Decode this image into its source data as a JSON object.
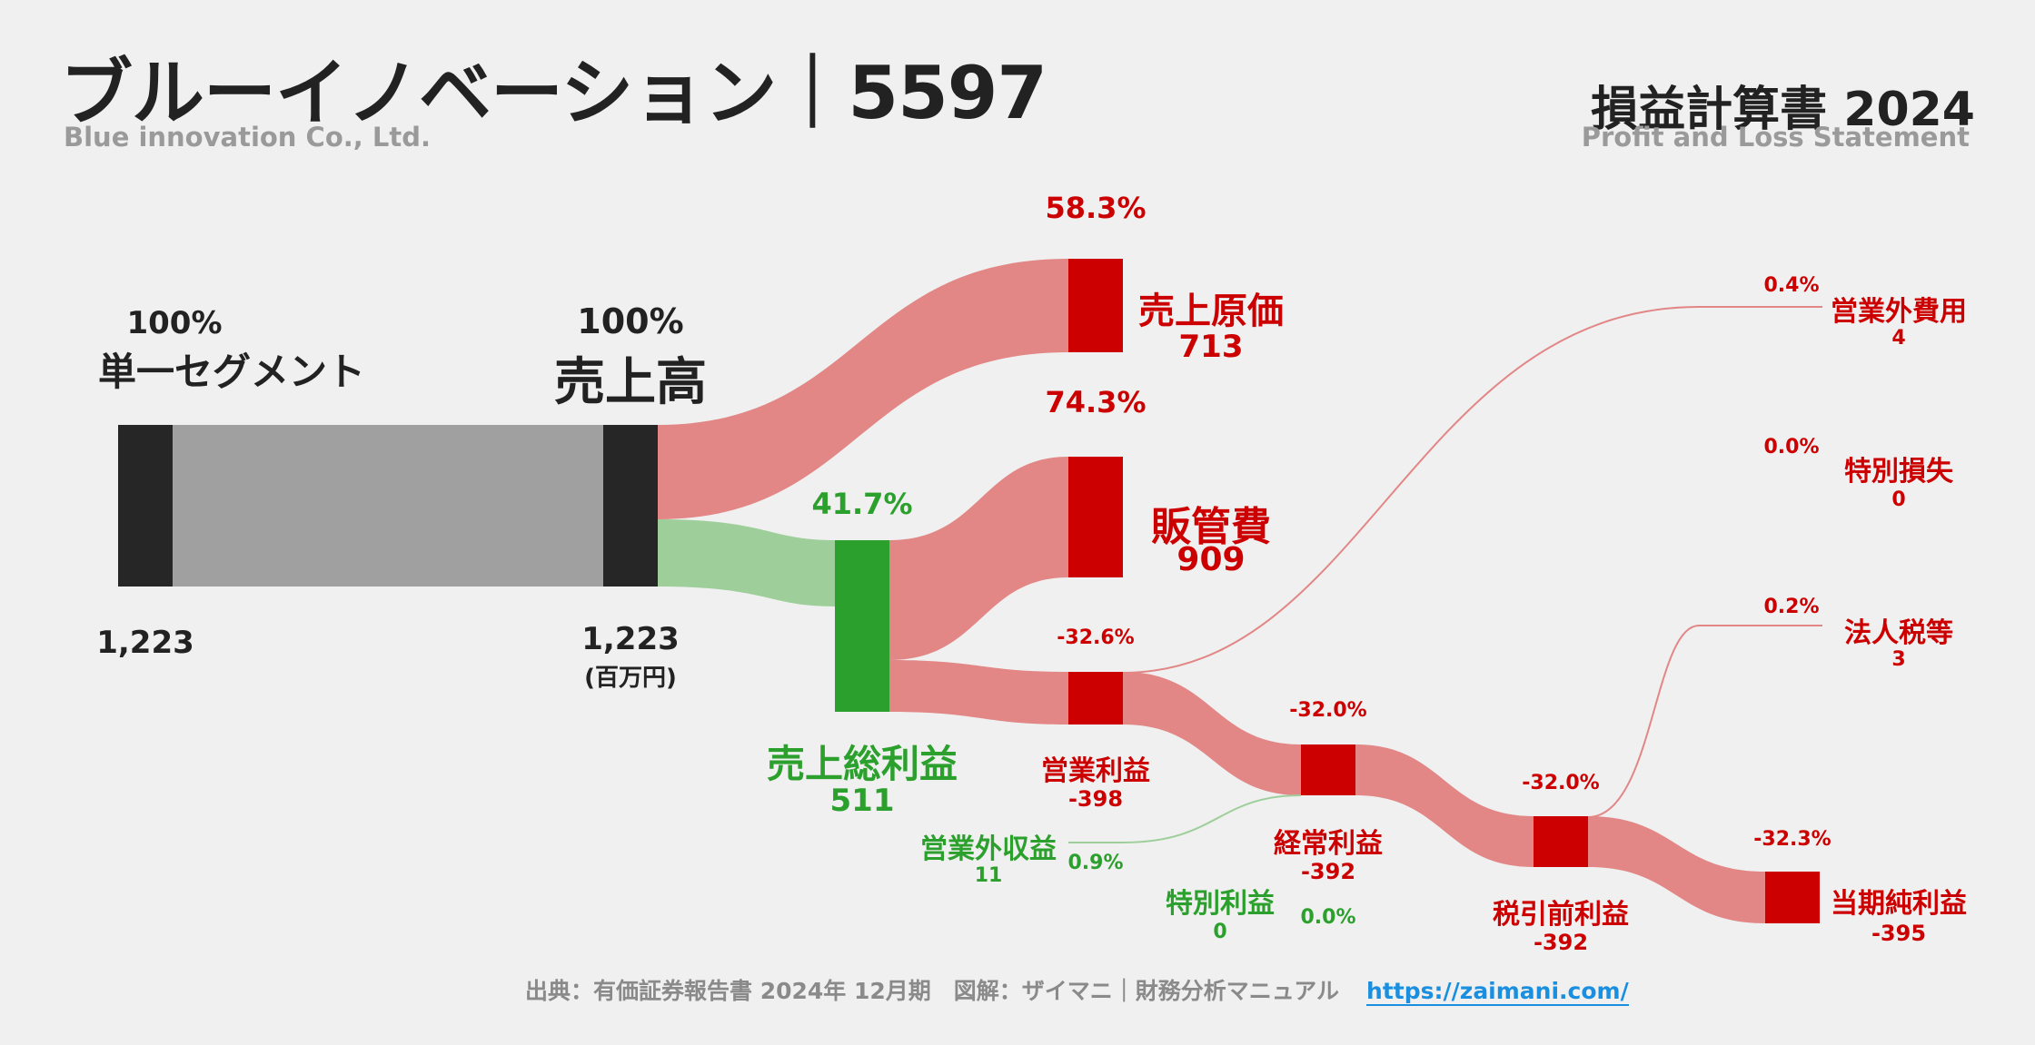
{
  "header": {
    "title": "ブルーイノベーション｜5597",
    "subtitle": "Blue innovation Co., Ltd.",
    "statement": "損益計算書 2024",
    "statement_sub": "Profit and Loss Statement"
  },
  "colors": {
    "revenue": "#262626",
    "revenue_flow": "#a0a0a0",
    "expense": "#cc0000",
    "expense_flow": "#e28686",
    "profit": "#2ca02c",
    "profit_flow": "#9ecf9a"
  },
  "nodes": {
    "segment": {
      "pct": "100%",
      "name": "単一セグメント",
      "value": "1,223"
    },
    "revenue": {
      "pct": "100%",
      "name": "売上高",
      "value": "1,223",
      "unit": "(百万円)"
    },
    "cogs": {
      "pct": "58.3%",
      "name": "売上原価",
      "value": "713"
    },
    "gross": {
      "pct": "41.7%",
      "name": "売上総利益",
      "value": "511"
    },
    "sga": {
      "pct": "74.3%",
      "name": "販管費",
      "value": "909"
    },
    "op": {
      "pct": "-32.6%",
      "name": "営業利益",
      "value": "-398"
    },
    "nonop_inc": {
      "pct": "0.9%",
      "name": "営業外収益",
      "value": "11"
    },
    "nonop_exp": {
      "pct": "0.4%",
      "name": "営業外費用",
      "value": "4"
    },
    "ordinary": {
      "pct": "-32.0%",
      "name": "経常利益",
      "value": "-392"
    },
    "special_inc": {
      "pct": "0.0%",
      "name": "特別利益",
      "value": "0"
    },
    "special_loss": {
      "pct": "0.0%",
      "name": "特別損失",
      "value": "0"
    },
    "pretax": {
      "pct": "-32.0%",
      "name": "税引前利益",
      "value": "-392"
    },
    "tax": {
      "pct": "0.2%",
      "name": "法人税等",
      "value": "3"
    },
    "net": {
      "pct": "-32.3%",
      "name": "当期純利益",
      "value": "-395"
    }
  },
  "footer": {
    "source": "出典：有価証券報告書 2024年 12月期　図解：ザイマニ｜財務分析マニュアル",
    "link": "https://zaimani.com/"
  }
}
